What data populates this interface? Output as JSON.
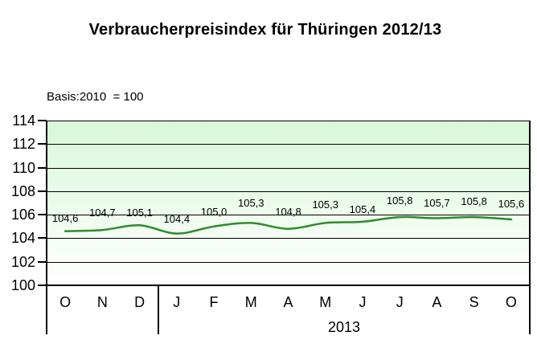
{
  "header": {
    "title": "Verbraucherpreisindex für Thüringen 2012/13",
    "basis_note": "Basis:2010  = 100"
  },
  "chart_data": {
    "type": "line",
    "title": "Verbraucherpreisindex für Thüringen 2012/13",
    "subtitle": "Basis:2010 = 100",
    "categories": [
      "O",
      "N",
      "D",
      "J",
      "F",
      "M",
      "A",
      "M",
      "J",
      "J",
      "A",
      "S",
      "O"
    ],
    "values": [
      104.6,
      104.7,
      105.1,
      104.4,
      105.0,
      105.3,
      104.8,
      105.3,
      105.4,
      105.8,
      105.7,
      105.8,
      105.6
    ],
    "point_labels": [
      "104,6",
      "104,7",
      "105,1",
      "104,4",
      "105,0",
      "105,3",
      "104,8",
      "105,3",
      "105,4",
      "105,8",
      "105,7",
      "105,8",
      "105,6"
    ],
    "y_ticks": [
      114,
      112,
      110,
      108,
      106,
      104,
      102,
      100
    ],
    "ylim": [
      100,
      114
    ],
    "grid": true,
    "legend_position": "none",
    "groups": [
      {
        "start": 0,
        "count": 3,
        "label": ""
      },
      {
        "start": 3,
        "count": 10,
        "label": "2013"
      }
    ],
    "colors": {
      "line": "#2e8b2e",
      "plot_bg_top": "#d8f7d8",
      "plot_bg_bottom": "#ffffff",
      "grid_line": "#000000",
      "text": "#000000"
    }
  }
}
